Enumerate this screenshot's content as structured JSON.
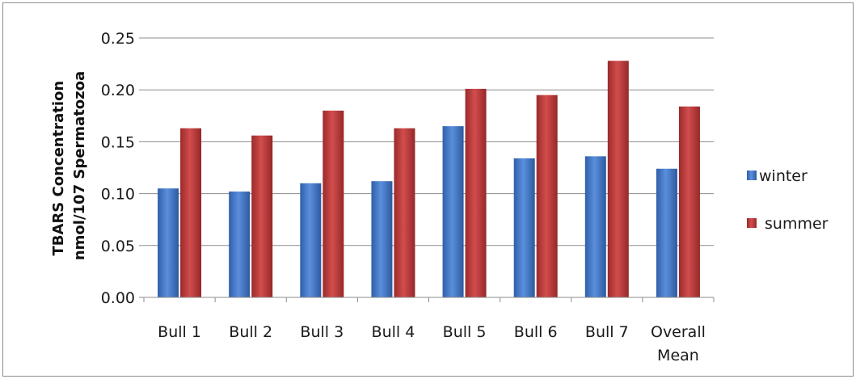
{
  "chart_data": {
    "type": "bar",
    "title": "",
    "xlabel": "",
    "ylabel": [
      "TBARS Concentration",
      "nmol/107 Spermatozoa"
    ],
    "categories": [
      [
        "Bull 1"
      ],
      [
        "Bull 2"
      ],
      [
        "Bull 3"
      ],
      [
        "Bull 4"
      ],
      [
        "Bull 5"
      ],
      [
        "Bull 6"
      ],
      [
        "Bull 7"
      ],
      [
        "Overall",
        "Mean"
      ]
    ],
    "series": [
      {
        "name": "winter",
        "color": "#4a7fd0",
        "values": [
          0.105,
          0.102,
          0.11,
          0.112,
          0.165,
          0.134,
          0.136,
          0.124
        ]
      },
      {
        "name": "summer",
        "color": "#c0393a",
        "values": [
          0.163,
          0.156,
          0.18,
          0.163,
          0.201,
          0.195,
          0.228,
          0.184
        ]
      }
    ],
    "ylim": [
      0,
      0.25
    ],
    "yticks": [
      "0.00",
      "0.05",
      "0.10",
      "0.15",
      "0.20",
      "0.25"
    ],
    "ytick_values": [
      0,
      0.05,
      0.1,
      0.15,
      0.2,
      0.25
    ],
    "grid": true,
    "legend_position": "right"
  }
}
